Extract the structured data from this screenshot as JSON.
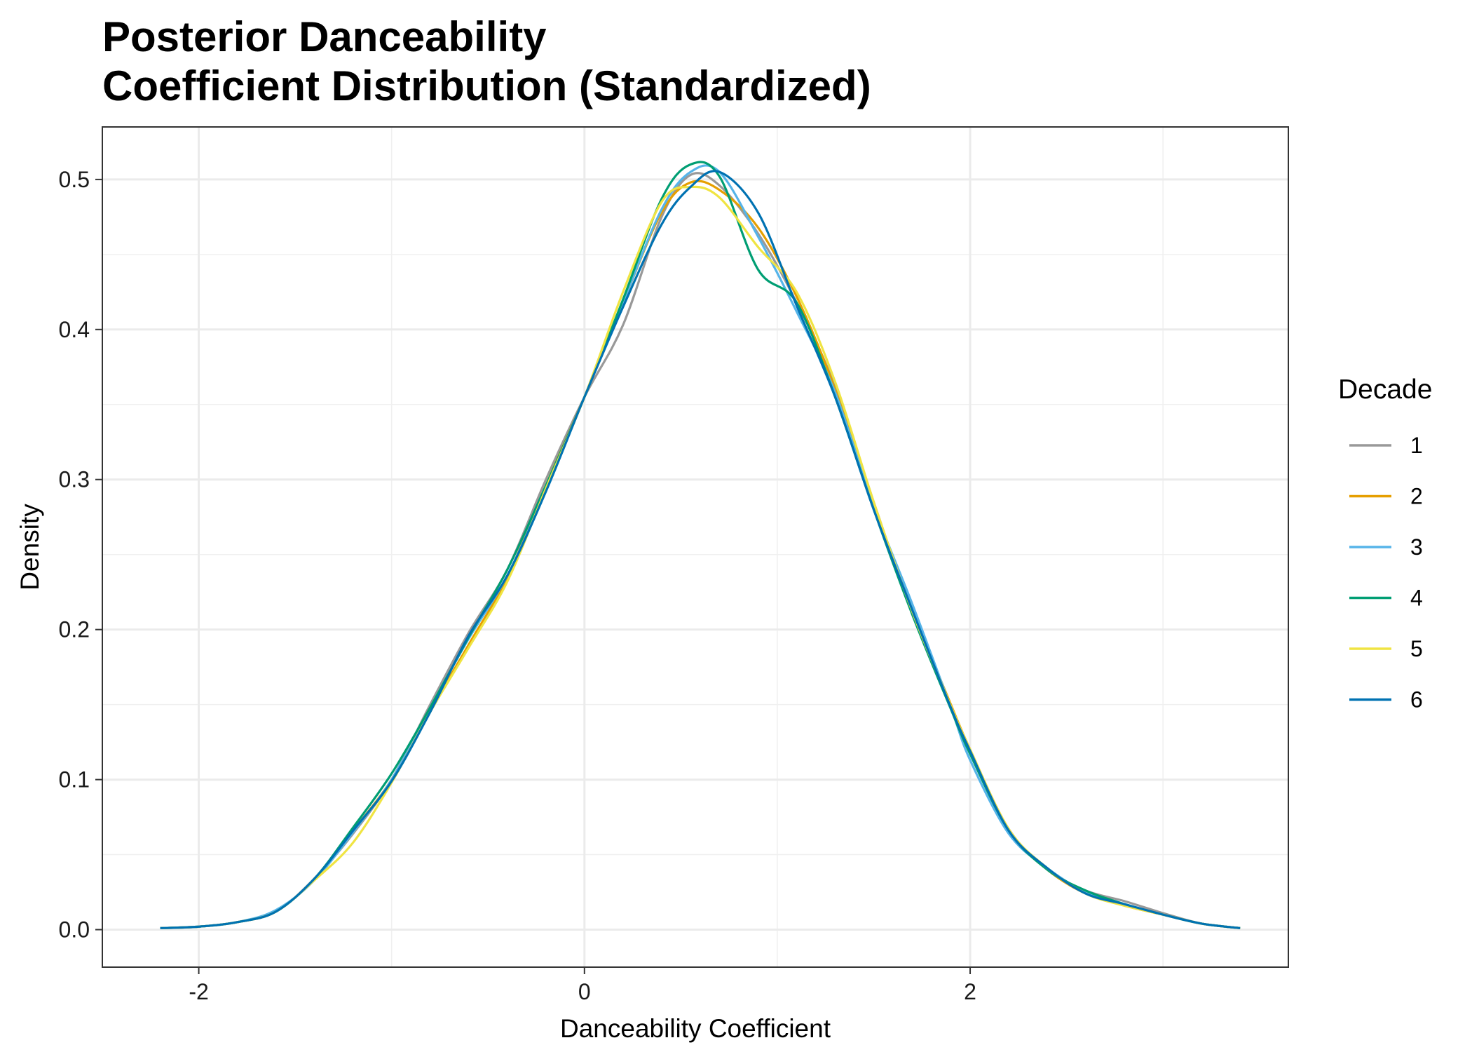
{
  "chart_data": {
    "type": "line",
    "title_lines": [
      "Posterior Danceability",
      "Coefficient Distribution (Standardized)"
    ],
    "xlabel": "Danceability Coefficient",
    "ylabel": "Density",
    "xlim": [
      -2.5,
      3.65
    ],
    "ylim": [
      -0.025,
      0.535
    ],
    "x_ticks": [
      -2,
      0,
      2
    ],
    "x_tick_labels": [
      "-2",
      "0",
      "2"
    ],
    "y_ticks": [
      0.0,
      0.1,
      0.2,
      0.3,
      0.4,
      0.5
    ],
    "y_tick_labels": [
      "0.0",
      "0.1",
      "0.2",
      "0.3",
      "0.4",
      "0.5"
    ],
    "grid": true,
    "legend": {
      "title": "Decade",
      "position": "right"
    },
    "series": [
      {
        "name": "1",
        "color": "#999999",
        "x": [
          -2.2,
          -2.0,
          -1.8,
          -1.6,
          -1.4,
          -1.2,
          -1.0,
          -0.8,
          -0.6,
          -0.4,
          -0.2,
          0.0,
          0.2,
          0.4,
          0.55,
          0.7,
          0.9,
          1.1,
          1.3,
          1.5,
          1.7,
          1.9,
          2.0,
          2.2,
          2.4,
          2.6,
          2.8,
          3.0,
          3.2,
          3.4
        ],
        "y": [
          0.001,
          0.002,
          0.005,
          0.012,
          0.034,
          0.064,
          0.1,
          0.15,
          0.198,
          0.24,
          0.3,
          0.355,
          0.403,
          0.475,
          0.503,
          0.496,
          0.464,
          0.418,
          0.362,
          0.285,
          0.211,
          0.148,
          0.118,
          0.067,
          0.04,
          0.026,
          0.019,
          0.011,
          0.004,
          0.001
        ]
      },
      {
        "name": "2",
        "color": "#E69F00",
        "x": [
          -2.2,
          -2.0,
          -1.8,
          -1.6,
          -1.4,
          -1.2,
          -1.0,
          -0.8,
          -0.6,
          -0.4,
          -0.2,
          0.0,
          0.2,
          0.4,
          0.55,
          0.7,
          0.9,
          1.1,
          1.3,
          1.5,
          1.7,
          1.9,
          2.0,
          2.2,
          2.4,
          2.6,
          2.8,
          3.0,
          3.2,
          3.4
        ],
        "y": [
          0.001,
          0.002,
          0.005,
          0.012,
          0.034,
          0.066,
          0.1,
          0.146,
          0.19,
          0.235,
          0.296,
          0.355,
          0.418,
          0.478,
          0.498,
          0.493,
          0.468,
          0.422,
          0.36,
          0.283,
          0.213,
          0.15,
          0.12,
          0.067,
          0.04,
          0.024,
          0.016,
          0.01,
          0.004,
          0.001
        ]
      },
      {
        "name": "3",
        "color": "#56B4E9",
        "x": [
          -2.2,
          -2.0,
          -1.8,
          -1.6,
          -1.4,
          -1.2,
          -1.0,
          -0.8,
          -0.6,
          -0.4,
          -0.2,
          0.0,
          0.2,
          0.4,
          0.55,
          0.7,
          0.9,
          1.1,
          1.3,
          1.5,
          1.7,
          1.9,
          2.0,
          2.2,
          2.4,
          2.6,
          2.8,
          3.0,
          3.2,
          3.4
        ],
        "y": [
          0.001,
          0.002,
          0.005,
          0.013,
          0.033,
          0.065,
          0.1,
          0.148,
          0.194,
          0.236,
          0.293,
          0.355,
          0.418,
          0.48,
          0.505,
          0.505,
          0.462,
          0.412,
          0.358,
          0.282,
          0.217,
          0.148,
          0.113,
          0.064,
          0.041,
          0.025,
          0.017,
          0.01,
          0.004,
          0.001
        ]
      },
      {
        "name": "4",
        "color": "#009E73",
        "x": [
          -2.2,
          -2.0,
          -1.8,
          -1.6,
          -1.4,
          -1.2,
          -1.0,
          -0.8,
          -0.6,
          -0.4,
          -0.2,
          0.0,
          0.2,
          0.4,
          0.55,
          0.7,
          0.9,
          1.1,
          1.3,
          1.5,
          1.7,
          1.9,
          2.0,
          2.2,
          2.4,
          2.6,
          2.8,
          3.0,
          3.2,
          3.4
        ],
        "y": [
          0.001,
          0.002,
          0.005,
          0.012,
          0.034,
          0.068,
          0.104,
          0.148,
          0.195,
          0.24,
          0.296,
          0.355,
          0.42,
          0.487,
          0.51,
          0.502,
          0.44,
          0.418,
          0.355,
          0.28,
          0.21,
          0.147,
          0.117,
          0.066,
          0.04,
          0.026,
          0.017,
          0.01,
          0.004,
          0.001
        ]
      },
      {
        "name": "5",
        "color": "#F0E442",
        "x": [
          -2.2,
          -2.0,
          -1.8,
          -1.6,
          -1.4,
          -1.2,
          -1.0,
          -0.8,
          -0.6,
          -0.4,
          -0.2,
          0.0,
          0.2,
          0.4,
          0.55,
          0.7,
          0.9,
          1.1,
          1.3,
          1.5,
          1.7,
          1.9,
          2.0,
          2.2,
          2.4,
          2.6,
          2.8,
          3.0,
          3.2,
          3.4
        ],
        "y": [
          0.001,
          0.002,
          0.005,
          0.012,
          0.033,
          0.058,
          0.098,
          0.145,
          0.188,
          0.232,
          0.294,
          0.355,
          0.425,
          0.485,
          0.495,
          0.488,
          0.455,
          0.425,
          0.365,
          0.285,
          0.212,
          0.149,
          0.12,
          0.067,
          0.041,
          0.024,
          0.016,
          0.01,
          0.004,
          0.001
        ]
      },
      {
        "name": "6",
        "color": "#0072B2",
        "x": [
          -2.2,
          -2.0,
          -1.8,
          -1.6,
          -1.4,
          -1.2,
          -1.0,
          -0.8,
          -0.6,
          -0.4,
          -0.2,
          0.0,
          0.2,
          0.4,
          0.55,
          0.7,
          0.9,
          1.1,
          1.3,
          1.5,
          1.7,
          1.9,
          2.0,
          2.2,
          2.4,
          2.6,
          2.8,
          3.0,
          3.2,
          3.4
        ],
        "y": [
          0.001,
          0.002,
          0.005,
          0.012,
          0.034,
          0.066,
          0.099,
          0.145,
          0.196,
          0.236,
          0.292,
          0.355,
          0.415,
          0.47,
          0.495,
          0.505,
          0.478,
          0.416,
          0.355,
          0.28,
          0.213,
          0.148,
          0.119,
          0.066,
          0.041,
          0.024,
          0.017,
          0.01,
          0.004,
          0.001
        ]
      }
    ]
  }
}
